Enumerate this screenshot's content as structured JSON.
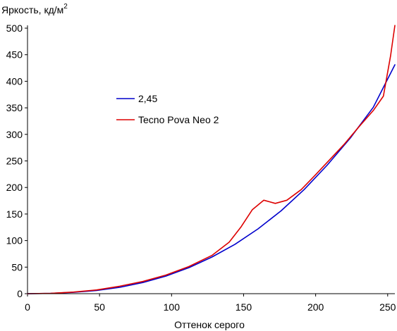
{
  "chart_data": {
    "type": "line",
    "ylabel": "Яркость, кд/м",
    "ylabel_superscript": "2",
    "xlabel": "Оттенок серого",
    "xlim": [
      0,
      255
    ],
    "ylim": [
      0,
      500
    ],
    "x_ticks": [
      0,
      50,
      100,
      150,
      200,
      250
    ],
    "y_ticks": [
      0,
      50,
      100,
      150,
      200,
      250,
      300,
      350,
      400,
      450,
      500
    ],
    "grid": false,
    "legend_position": "center-left",
    "series": [
      {
        "name": "2,45",
        "color": "#0000cc",
        "x": [
          0,
          16,
          32,
          48,
          64,
          80,
          96,
          112,
          128,
          144,
          160,
          176,
          192,
          208,
          224,
          240,
          255
        ],
        "y": [
          0,
          0.5,
          2.5,
          6,
          12,
          21,
          33,
          49,
          69,
          93,
          122,
          156,
          196,
          242,
          293,
          351,
          431
        ]
      },
      {
        "name": "Tecno Pova Neo 2",
        "color": "#dd0000",
        "x": [
          0,
          16,
          32,
          48,
          64,
          80,
          96,
          112,
          128,
          140,
          148,
          156,
          164,
          172,
          180,
          190,
          200,
          210,
          220,
          230,
          240,
          247,
          252,
          255
        ],
        "y": [
          0,
          0.5,
          3,
          7,
          14,
          23,
          35,
          51,
          72,
          97,
          125,
          158,
          176,
          170,
          176,
          196,
          224,
          253,
          282,
          314,
          345,
          372,
          448,
          505
        ]
      }
    ]
  }
}
